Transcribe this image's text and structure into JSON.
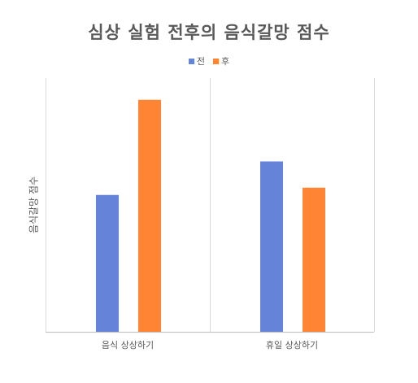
{
  "chart_data": {
    "type": "bar",
    "title": "심상 실험 전후의 음식갈망 점수",
    "xlabel": "",
    "ylabel": "음식갈망 점수",
    "categories": [
      "음식 상상하기",
      "휴일 상상하기"
    ],
    "series": [
      {
        "name": "전",
        "color": "#6583D8",
        "values": [
          1.51,
          1.88
        ]
      },
      {
        "name": "후",
        "color": "#FF8534",
        "values": [
          2.56,
          1.59
        ]
      }
    ],
    "ylim": [
      0,
      2.8
    ],
    "grid": true,
    "legend_position": "top"
  }
}
